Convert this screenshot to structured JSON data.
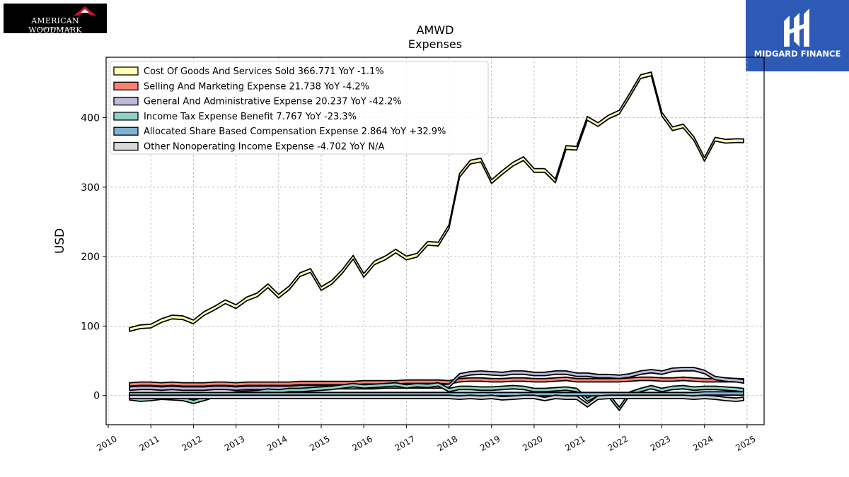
{
  "brand_left": {
    "name": "AMERICAN WOODMARK",
    "sub": "CORPORATION"
  },
  "brand_right": {
    "name": "MIDGARD FINANCE"
  },
  "chart_data": {
    "type": "area",
    "title": "AMWD",
    "subtitle": "Expenses",
    "xlabel": "",
    "ylabel": "USD",
    "xlim": [
      2009.95,
      2025.4
    ],
    "ylim": [
      -42,
      487
    ],
    "yticks": [
      0,
      100,
      200,
      300,
      400
    ],
    "xticks": [
      "2010",
      "2011",
      "2012",
      "2013",
      "2014",
      "2015",
      "2016",
      "2017",
      "2018",
      "2019",
      "2020",
      "2021",
      "2022",
      "2023",
      "2024",
      "2025"
    ],
    "grid": true,
    "legend_position": "top-left",
    "x": [
      2010.5,
      2010.75,
      2011.0,
      2011.25,
      2011.5,
      2011.75,
      2012.0,
      2012.25,
      2012.5,
      2012.75,
      2013.0,
      2013.25,
      2013.5,
      2013.75,
      2014.0,
      2014.25,
      2014.5,
      2014.75,
      2015.0,
      2015.25,
      2015.5,
      2015.75,
      2016.0,
      2016.25,
      2016.5,
      2016.75,
      2017.0,
      2017.25,
      2017.5,
      2017.75,
      2018.0,
      2018.25,
      2018.5,
      2018.75,
      2019.0,
      2019.25,
      2019.5,
      2019.75,
      2020.0,
      2020.25,
      2020.5,
      2020.75,
      2021.0,
      2021.25,
      2021.5,
      2021.75,
      2022.0,
      2022.25,
      2022.5,
      2022.75,
      2023.0,
      2023.25,
      2023.5,
      2023.75,
      2024.0,
      2024.25,
      2024.5,
      2024.75,
      2024.92
    ],
    "series": [
      {
        "name": "Cost Of Goods And Services Sold",
        "legend": "Cost Of Goods And Services Sold  366.771 YoY -1.1%",
        "color": "#ffffb3",
        "values": [
          95,
          99,
          100,
          108,
          113,
          112,
          106,
          118,
          126,
          135,
          128,
          139,
          145,
          158,
          143,
          155,
          174,
          180,
          154,
          163,
          179,
          199,
          173,
          191,
          198,
          208,
          198,
          202,
          219,
          218,
          243,
          317,
          336,
          339,
          308,
          321,
          333,
          341,
          324,
          324,
          309,
          357,
          356,
          399,
          390,
          401,
          408,
          433,
          459,
          463,
          405,
          384,
          388,
          370,
          340,
          369,
          366,
          367,
          366.771
        ]
      },
      {
        "name": "Selling And Marketing Expense",
        "legend": "Selling And Marketing Expense  21.738 YoY -4.2%",
        "color": "#fb8072",
        "values": [
          16,
          17,
          17,
          16,
          17,
          16,
          16,
          16,
          17,
          17,
          16,
          17,
          17,
          17,
          17,
          17,
          18,
          18,
          18,
          18,
          18,
          18,
          19,
          19,
          19,
          19,
          20,
          20,
          20,
          20,
          19,
          22,
          23,
          23,
          22,
          22,
          23,
          23,
          22,
          22,
          23,
          24,
          22,
          22,
          22,
          22,
          22,
          23,
          24,
          24,
          23,
          23,
          24,
          23,
          22,
          22,
          22,
          22,
          21.738
        ]
      },
      {
        "name": "General And Administrative Expense",
        "legend": "General And Administrative Expense  20.237 YoY -42.2%",
        "color": "#bebada",
        "values": [
          10,
          11,
          11,
          10,
          11,
          10,
          10,
          10,
          11,
          11,
          10,
          11,
          11,
          11,
          11,
          11,
          12,
          12,
          12,
          12,
          12,
          12,
          12,
          12,
          13,
          13,
          13,
          13,
          13,
          13,
          14,
          29,
          32,
          33,
          32,
          31,
          33,
          33,
          31,
          31,
          33,
          33,
          30,
          30,
          28,
          28,
          27,
          29,
          33,
          35,
          33,
          37,
          38,
          38,
          34,
          25,
          23,
          22,
          20.237
        ]
      },
      {
        "name": "Income Tax Expense Benefit",
        "legend": "Income Tax Expense Benefit  7.767 YoY -23.3%",
        "color": "#8dd3c7",
        "values": [
          -4,
          -6,
          -5,
          -3,
          -4,
          -5,
          -9,
          -5,
          0,
          1,
          3,
          4,
          5,
          7,
          6,
          8,
          8,
          9,
          10,
          11,
          13,
          15,
          13,
          14,
          15,
          16,
          13,
          15,
          14,
          16,
          8,
          11,
          11,
          10,
          10,
          11,
          12,
          11,
          8,
          8,
          9,
          10,
          8,
          -6,
          2,
          0,
          -19,
          3,
          8,
          12,
          8,
          11,
          12,
          10,
          11,
          11,
          10,
          9,
          7.767
        ]
      },
      {
        "name": "Allocated Share Based Compensation Expense",
        "legend": "Allocated Share Based Compensation Expense  2.864 YoY +32.9%",
        "color": "#80b1d3",
        "values": [
          2,
          2,
          2,
          2,
          2,
          2,
          2,
          2,
          2,
          2,
          2,
          2,
          2,
          2,
          2,
          2,
          2,
          2,
          2,
          2,
          2,
          2,
          2,
          2,
          2,
          2,
          2,
          2,
          2,
          2,
          2,
          2,
          2,
          2,
          2,
          2,
          2,
          2,
          2,
          2,
          2,
          2,
          2,
          2,
          2,
          2,
          2,
          2,
          2,
          2,
          2,
          2,
          2,
          2,
          3,
          3,
          3,
          3,
          2.864
        ]
      },
      {
        "name": "Other Nonoperating Income Expense",
        "legend": "Other Nonoperating Income Expense  -4.702 YoY N/A",
        "color": "#d9d9d9",
        "values": [
          -2,
          -2,
          -2,
          -2,
          -2,
          -2,
          -2,
          -2,
          -2,
          -2,
          -2,
          -2,
          -2,
          -2,
          -2,
          -2,
          -2,
          -2,
          -2,
          -2,
          -2,
          -2,
          -2,
          -2,
          -2,
          -2,
          -2,
          -2,
          -2,
          -2,
          -2,
          -3,
          -2,
          -3,
          -2,
          -4,
          -3,
          -2,
          -2,
          -5,
          -2,
          -3,
          -3,
          -14,
          -3,
          -2,
          -2,
          -2,
          -2,
          -2,
          -2,
          -2,
          -2,
          -3,
          -2,
          -3,
          -5,
          -6,
          -4.702
        ]
      }
    ]
  }
}
